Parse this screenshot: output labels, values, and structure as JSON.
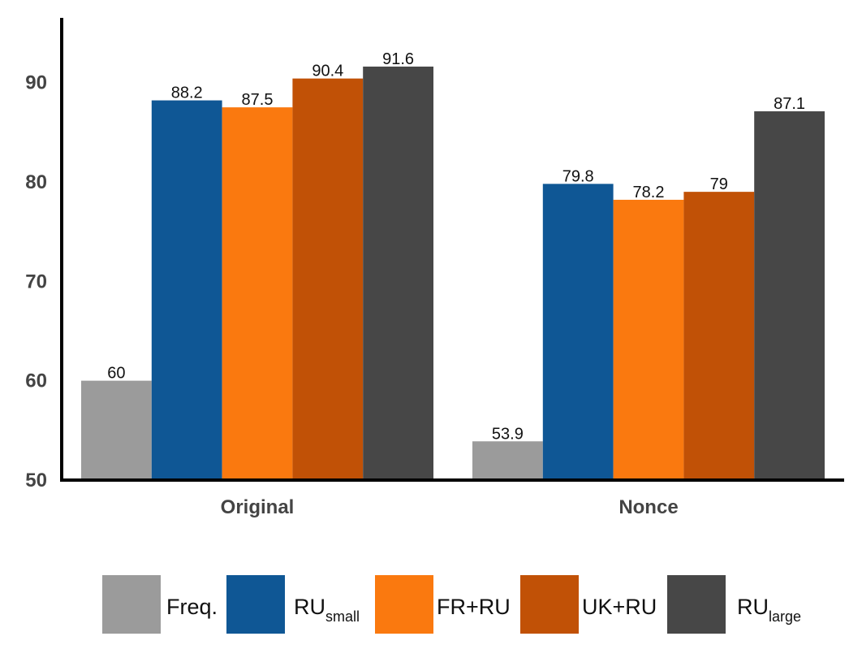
{
  "chart_data": {
    "type": "bar",
    "categories": [
      "Original",
      "Nonce"
    ],
    "series": [
      {
        "name": "Freq.",
        "name_base": "Freq.",
        "name_sub": "",
        "color": "#9b9b9b",
        "values": [
          60,
          53.9
        ]
      },
      {
        "name": "RUsmall",
        "name_base": "RU",
        "name_sub": "small",
        "color": "#0f5795",
        "values": [
          88.2,
          79.8
        ]
      },
      {
        "name": "FR+RU",
        "name_base": "FR+RU",
        "name_sub": "",
        "color": "#fa790f",
        "values": [
          87.5,
          78.2
        ]
      },
      {
        "name": "UK+RU",
        "name_base": "UK+RU",
        "name_sub": "",
        "color": "#c15106",
        "values": [
          90.4,
          79
        ]
      },
      {
        "name": "RUlarge",
        "name_base": "RU",
        "name_sub": "large",
        "color": "#474747",
        "values": [
          91.6,
          87.1
        ]
      }
    ],
    "data_labels": [
      [
        "60",
        "53.9"
      ],
      [
        "88.2",
        "79.8"
      ],
      [
        "87.5",
        "78.2"
      ],
      [
        "90.4",
        "79"
      ],
      [
        "91.6",
        "87.1"
      ]
    ],
    "yticks": [
      "50",
      "60",
      "70",
      "80",
      "90"
    ],
    "ylim": [
      50,
      96.5
    ],
    "title": "",
    "xlabel": "",
    "ylabel": "",
    "grid": false,
    "legend_position": "bottom"
  }
}
